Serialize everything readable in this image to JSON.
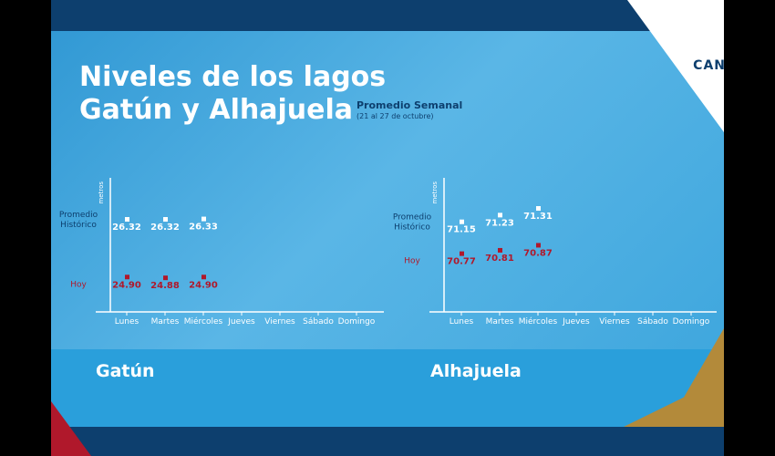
{
  "title": {
    "line1": "Niveles de los lagos",
    "line2": "Gatún y Alhajuela"
  },
  "subtitle": {
    "label": "Promedio Semanal",
    "range": "(21 al 27 de octubre)"
  },
  "brand": "CAN",
  "colors": {
    "historic_marker": "#ffffff",
    "today_marker": "#b0182b",
    "dark_blue": "#0d3f6e"
  },
  "chart_data": [
    {
      "type": "scatter",
      "title": "Gatún",
      "ylabel": "metros",
      "categories": [
        "Lunes",
        "Martes",
        "Miércoles",
        "Jueves",
        "Viernes",
        "Sábado",
        "Domingo"
      ],
      "series": [
        {
          "name": "Promedio Histórico",
          "values": [
            26.32,
            26.32,
            26.33,
            null,
            null,
            null,
            null
          ]
        },
        {
          "name": "Hoy",
          "values": [
            24.9,
            24.88,
            24.9,
            null,
            null,
            null,
            null
          ]
        }
      ],
      "value_labels": {
        "historic": [
          "26.32",
          "26.32",
          "26.33"
        ],
        "today": [
          "24.90",
          "24.88",
          "24.90"
        ]
      },
      "ylim": [
        24.3,
        27.6
      ],
      "grid": false
    },
    {
      "type": "scatter",
      "title": "Alhajuela",
      "ylabel": "metros",
      "categories": [
        "Lunes",
        "Martes",
        "Miércoles",
        "Jueves",
        "Viernes",
        "Sábado",
        "Domingo"
      ],
      "series": [
        {
          "name": "Promedio Histórico",
          "values": [
            71.15,
            71.23,
            71.31,
            null,
            null,
            null,
            null
          ]
        },
        {
          "name": "Hoy",
          "values": [
            70.77,
            70.81,
            70.87,
            null,
            null,
            null,
            null
          ]
        }
      ],
      "value_labels": {
        "historic": [
          "71.15",
          "71.23",
          "71.31"
        ],
        "today": [
          "70.77",
          "70.81",
          "70.87"
        ]
      },
      "ylim": [
        70.2,
        71.8
      ],
      "grid": false
    }
  ]
}
